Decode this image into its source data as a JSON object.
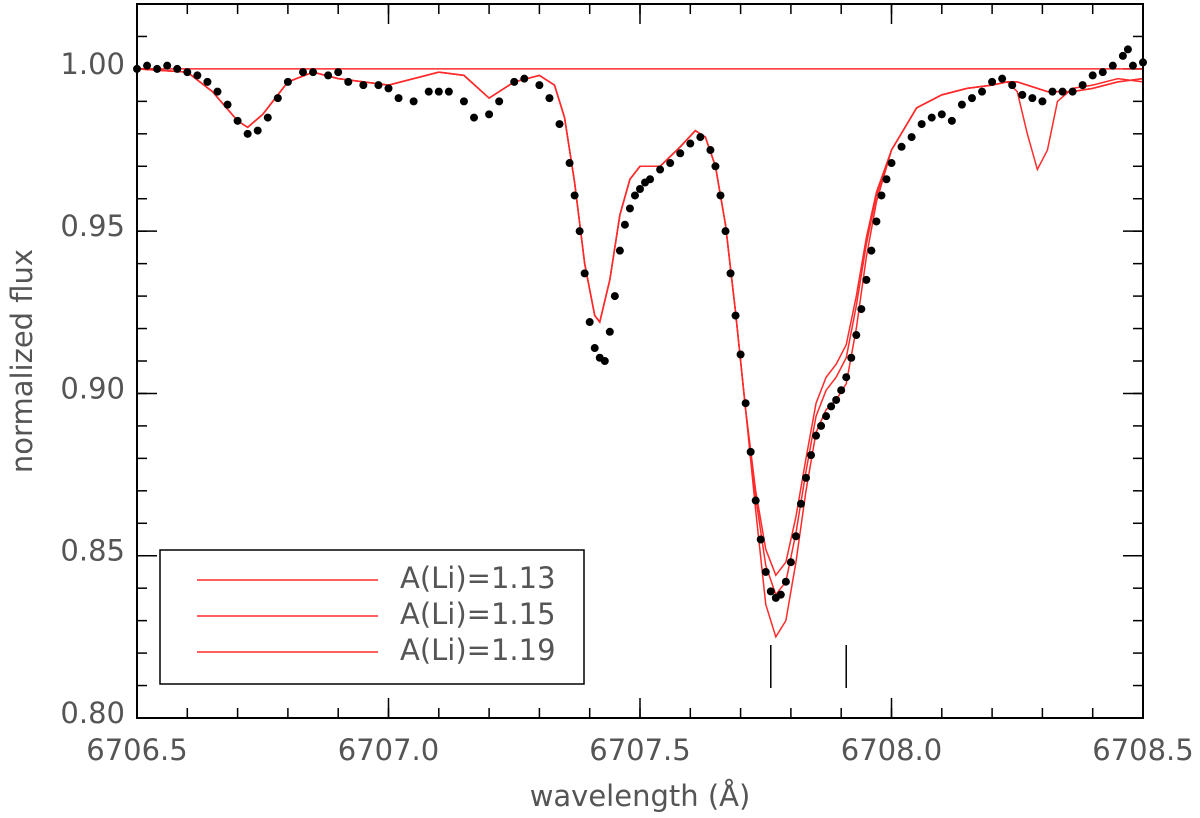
{
  "chart_data": {
    "type": "line",
    "xlabel": "wavelength (Å)",
    "ylabel": "normalized flux",
    "xlim": [
      6706.5,
      6708.5
    ],
    "ylim": [
      0.8,
      1.02
    ],
    "xticks": [
      6706.5,
      {
        "value": 6707.0,
        "label": "6707.0"
      },
      6707.5,
      {
        "value": 6708.0,
        "label": "6708.0"
      },
      6708.5
    ],
    "yticks": [
      {
        "value": 0.8,
        "label": "0.80"
      },
      0.85,
      {
        "value": 0.9,
        "label": "0.90"
      },
      0.95,
      {
        "value": 1.0,
        "label": "1.00"
      }
    ],
    "xminor_step": 0.1,
    "yminor_step": 0.01,
    "legend": "lower left",
    "reference_line": {
      "value": 1.0,
      "color": "#ff2a2a"
    },
    "line_markers": {
      "x": [
        6707.76,
        6707.91
      ],
      "color": "#000000"
    },
    "observed": {
      "color": "#000000",
      "x": [
        6706.5,
        6706.52,
        6706.54,
        6706.56,
        6706.58,
        6706.6,
        6706.62,
        6706.64,
        6706.66,
        6706.68,
        6706.7,
        6706.72,
        6706.74,
        6706.76,
        6706.78,
        6706.8,
        6706.83,
        6706.85,
        6706.88,
        6706.9,
        6706.92,
        6706.95,
        6706.98,
        6707.0,
        6707.02,
        6707.05,
        6707.08,
        6707.1,
        6707.12,
        6707.15,
        6707.17,
        6707.2,
        6707.22,
        6707.25,
        6707.27,
        6707.3,
        6707.32,
        6707.34,
        6707.36,
        6707.37,
        6707.38,
        6707.39,
        6707.4,
        6707.41,
        6707.42,
        6707.43,
        6707.44,
        6707.45,
        6707.46,
        6707.47,
        6707.48,
        6707.49,
        6707.5,
        6707.51,
        6707.52,
        6707.54,
        6707.56,
        6707.58,
        6707.6,
        6707.62,
        6707.64,
        6707.65,
        6707.66,
        6707.67,
        6707.68,
        6707.69,
        6707.7,
        6707.71,
        6707.72,
        6707.73,
        6707.74,
        6707.75,
        6707.76,
        6707.77,
        6707.78,
        6707.79,
        6707.8,
        6707.81,
        6707.82,
        6707.83,
        6707.84,
        6707.85,
        6707.86,
        6707.87,
        6707.88,
        6707.89,
        6707.9,
        6707.91,
        6707.92,
        6707.93,
        6707.94,
        6707.95,
        6707.96,
        6707.97,
        6707.98,
        6707.99,
        6708.0,
        6708.02,
        6708.04,
        6708.06,
        6708.08,
        6708.1,
        6708.12,
        6708.14,
        6708.16,
        6708.18,
        6708.2,
        6708.22,
        6708.24,
        6708.26,
        6708.28,
        6708.3,
        6708.32,
        6708.34,
        6708.36,
        6708.38,
        6708.4,
        6708.42,
        6708.44,
        6708.46,
        6708.47,
        6708.48,
        6708.5
      ],
      "values": [
        1.0,
        1.001,
        1.0,
        1.001,
        1.0,
        0.999,
        0.998,
        0.996,
        0.993,
        0.989,
        0.984,
        0.98,
        0.981,
        0.985,
        0.991,
        0.996,
        0.999,
        0.999,
        0.998,
        0.999,
        0.996,
        0.995,
        0.995,
        0.994,
        0.991,
        0.99,
        0.993,
        0.993,
        0.993,
        0.99,
        0.985,
        0.986,
        0.99,
        0.996,
        0.997,
        0.995,
        0.991,
        0.983,
        0.971,
        0.961,
        0.95,
        0.937,
        0.922,
        0.914,
        0.911,
        0.91,
        0.919,
        0.93,
        0.944,
        0.952,
        0.957,
        0.961,
        0.963,
        0.965,
        0.966,
        0.969,
        0.971,
        0.974,
        0.977,
        0.979,
        0.975,
        0.97,
        0.961,
        0.95,
        0.937,
        0.924,
        0.912,
        0.897,
        0.882,
        0.867,
        0.855,
        0.845,
        0.839,
        0.837,
        0.838,
        0.842,
        0.848,
        0.856,
        0.866,
        0.874,
        0.881,
        0.887,
        0.89,
        0.893,
        0.896,
        0.898,
        0.901,
        0.905,
        0.911,
        0.918,
        0.926,
        0.935,
        0.944,
        0.953,
        0.961,
        0.966,
        0.971,
        0.976,
        0.979,
        0.983,
        0.985,
        0.986,
        0.984,
        0.989,
        0.991,
        0.993,
        0.996,
        0.997,
        0.995,
        0.992,
        0.991,
        0.99,
        0.993,
        0.993,
        0.993,
        0.995,
        0.998,
        0.999,
        1.001,
        1.004,
        1.006,
        1.001,
        1.002
      ]
    },
    "model_x": [
      6706.5,
      6706.6,
      6706.65,
      6706.7,
      6706.72,
      6706.75,
      6706.8,
      6706.85,
      6706.9,
      6707.0,
      6707.1,
      6707.15,
      6707.2,
      6707.25,
      6707.3,
      6707.33,
      6707.35,
      6707.37,
      6707.39,
      6707.41,
      6707.42,
      6707.44,
      6707.46,
      6707.48,
      6707.5,
      6707.54,
      6707.58,
      6707.61,
      6707.63,
      6707.65,
      6707.67,
      6707.69,
      6707.71,
      6707.73,
      6707.75,
      6707.77,
      6707.79,
      6707.81,
      6707.83,
      6707.85,
      6707.87,
      6707.89,
      6707.91,
      6707.93,
      6707.95,
      6707.97,
      6708.0,
      6708.05,
      6708.1,
      6708.15,
      6708.2,
      6708.23,
      6708.25,
      6708.27,
      6708.29,
      6708.31,
      6708.33,
      6708.36,
      6708.4,
      6708.45,
      6708.5
    ],
    "series": [
      {
        "name": "A(Li)=1.13",
        "color": "#ff2a2a",
        "values": [
          1.0,
          0.999,
          0.993,
          0.984,
          0.982,
          0.986,
          0.996,
          0.999,
          0.997,
          0.995,
          0.999,
          0.998,
          0.991,
          0.996,
          0.998,
          0.995,
          0.985,
          0.965,
          0.94,
          0.924,
          0.922,
          0.935,
          0.955,
          0.966,
          0.97,
          0.97,
          0.976,
          0.981,
          0.979,
          0.97,
          0.952,
          0.925,
          0.895,
          0.87,
          0.852,
          0.844,
          0.848,
          0.862,
          0.88,
          0.897,
          0.905,
          0.909,
          0.915,
          0.93,
          0.948,
          0.962,
          0.975,
          0.988,
          0.992,
          0.994,
          0.995,
          0.996,
          0.996,
          0.995,
          0.994,
          0.993,
          0.993,
          0.993,
          0.994,
          0.996,
          0.997
        ]
      },
      {
        "name": "A(Li)=1.15",
        "color": "#ff2a2a",
        "values": [
          1.0,
          0.999,
          0.993,
          0.984,
          0.982,
          0.986,
          0.996,
          0.999,
          0.997,
          0.995,
          0.999,
          0.998,
          0.991,
          0.996,
          0.998,
          0.995,
          0.985,
          0.965,
          0.94,
          0.924,
          0.922,
          0.935,
          0.955,
          0.966,
          0.97,
          0.97,
          0.976,
          0.981,
          0.979,
          0.97,
          0.952,
          0.925,
          0.895,
          0.868,
          0.847,
          0.838,
          0.842,
          0.857,
          0.876,
          0.893,
          0.901,
          0.905,
          0.911,
          0.927,
          0.946,
          0.961,
          0.975,
          0.988,
          0.992,
          0.994,
          0.995,
          0.996,
          0.996,
          0.995,
          0.994,
          0.993,
          0.993,
          0.993,
          0.994,
          0.996,
          0.997
        ]
      },
      {
        "name": "A(Li)=1.19",
        "color": "#ff2a2a",
        "values": [
          1.0,
          0.999,
          0.993,
          0.984,
          0.982,
          0.986,
          0.996,
          0.999,
          0.997,
          0.995,
          0.999,
          0.998,
          0.991,
          0.996,
          0.998,
          0.995,
          0.985,
          0.965,
          0.94,
          0.924,
          0.922,
          0.935,
          0.955,
          0.966,
          0.97,
          0.97,
          0.976,
          0.981,
          0.979,
          0.97,
          0.952,
          0.925,
          0.895,
          0.864,
          0.835,
          0.825,
          0.83,
          0.848,
          0.87,
          0.888,
          0.895,
          0.898,
          0.903,
          0.92,
          0.942,
          0.959,
          0.975,
          0.988,
          0.992,
          0.994,
          0.995,
          0.996,
          0.993,
          0.98,
          0.969,
          0.975,
          0.99,
          0.994,
          0.995,
          0.997,
          0.996
        ]
      }
    ]
  }
}
